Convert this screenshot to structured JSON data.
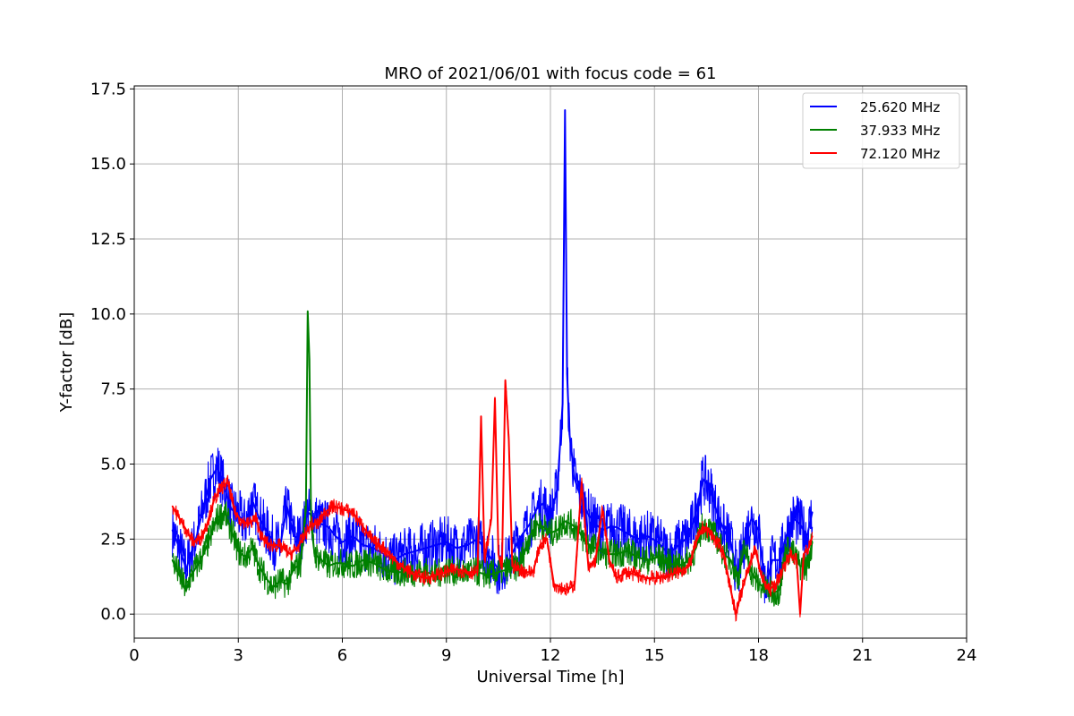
{
  "chart_data": {
    "type": "line",
    "title": "MRO of 2021/06/01 with focus code = 61",
    "xlabel": "Universal Time [h]",
    "ylabel": "Y-factor [dB]",
    "xlim": [
      0,
      24
    ],
    "ylim": [
      -0.8,
      17.6
    ],
    "xticks": [
      0,
      3,
      6,
      9,
      12,
      15,
      18,
      21,
      24
    ],
    "xtick_labels": [
      "0",
      "3",
      "6",
      "9",
      "12",
      "15",
      "18",
      "21",
      "24"
    ],
    "yticks": [
      0.0,
      2.5,
      5.0,
      7.5,
      10.0,
      12.5,
      15.0,
      17.5
    ],
    "ytick_labels": [
      "0.0",
      "2.5",
      "5.0",
      "7.5",
      "10.0",
      "12.5",
      "15.0",
      "17.5"
    ],
    "grid": true,
    "legend_position": "top-right",
    "series": [
      {
        "name": "25.620 MHz",
        "color": "#0000ff",
        "x": [
          1.1,
          1.3,
          1.5,
          1.6,
          1.8,
          2.0,
          2.2,
          2.4,
          2.6,
          2.8,
          3.0,
          3.2,
          3.4,
          3.6,
          3.8,
          4.0,
          4.2,
          4.4,
          4.6,
          4.8,
          5.0,
          5.2,
          5.4,
          5.6,
          5.8,
          6.0,
          6.3,
          6.6,
          6.9,
          7.2,
          7.5,
          7.8,
          8.1,
          8.4,
          8.7,
          9.0,
          9.3,
          9.6,
          9.9,
          10.2,
          10.5,
          10.8,
          11.1,
          11.4,
          11.6,
          11.8,
          12.0,
          12.2,
          12.35,
          12.42,
          12.45,
          12.48,
          12.55,
          12.7,
          12.9,
          13.1,
          13.3,
          13.5,
          13.7,
          13.9,
          14.2,
          14.5,
          14.8,
          15.1,
          15.4,
          15.7,
          16.0,
          16.2,
          16.4,
          16.6,
          16.8,
          17.0,
          17.2,
          17.4,
          17.6,
          17.8,
          18.0,
          18.2,
          18.4,
          18.6,
          18.8,
          19.0,
          19.2,
          19.4,
          19.55
        ],
        "y": [
          2.8,
          2.2,
          1.5,
          1.9,
          2.6,
          3.6,
          4.5,
          4.9,
          4.2,
          3.5,
          3.3,
          3.0,
          3.8,
          3.2,
          2.8,
          2.4,
          2.2,
          3.6,
          2.6,
          2.5,
          3.4,
          3.2,
          3.0,
          2.9,
          2.6,
          2.4,
          2.6,
          2.3,
          2.2,
          2.0,
          1.8,
          2.0,
          2.1,
          2.2,
          2.3,
          2.4,
          2.2,
          2.3,
          2.5,
          2.0,
          1.5,
          1.8,
          2.5,
          3.0,
          3.5,
          3.7,
          3.2,
          4.2,
          7.0,
          16.8,
          12.5,
          8.0,
          6.0,
          4.5,
          3.8,
          3.3,
          3.0,
          2.8,
          2.9,
          2.9,
          2.7,
          2.5,
          2.6,
          2.4,
          2.0,
          2.3,
          2.6,
          3.4,
          4.5,
          4.2,
          3.4,
          2.8,
          2.4,
          1.2,
          2.5,
          3.2,
          2.8,
          0.9,
          1.8,
          1.8,
          2.6,
          3.2,
          3.0,
          2.6,
          3.4
        ]
      },
      {
        "name": "37.933 MHz",
        "color": "#008000",
        "x": [
          1.1,
          1.3,
          1.5,
          1.6,
          1.8,
          2.0,
          2.2,
          2.4,
          2.6,
          2.8,
          3.0,
          3.2,
          3.4,
          3.6,
          3.8,
          4.0,
          4.2,
          4.4,
          4.6,
          4.8,
          4.95,
          5.0,
          5.05,
          5.1,
          5.2,
          5.4,
          5.6,
          5.8,
          6.0,
          6.3,
          6.6,
          6.9,
          7.2,
          7.5,
          7.8,
          8.1,
          8.4,
          8.7,
          9.0,
          9.3,
          9.6,
          9.9,
          10.2,
          10.5,
          10.8,
          11.1,
          11.4,
          11.6,
          11.8,
          12.0,
          12.2,
          12.4,
          12.6,
          12.8,
          13.0,
          13.3,
          13.6,
          13.9,
          14.2,
          14.5,
          14.8,
          15.1,
          15.4,
          15.7,
          16.0,
          16.2,
          16.4,
          16.6,
          16.8,
          17.0,
          17.2,
          17.4,
          17.6,
          17.8,
          18.0,
          18.2,
          18.4,
          18.6,
          18.8,
          19.0,
          19.2,
          19.4,
          19.55
        ],
        "y": [
          1.8,
          1.3,
          0.8,
          1.2,
          1.6,
          2.0,
          2.6,
          3.2,
          3.4,
          2.8,
          2.1,
          1.9,
          2.2,
          1.6,
          1.2,
          0.9,
          1.1,
          1.0,
          1.5,
          1.7,
          3.5,
          10.1,
          8.5,
          3.0,
          2.0,
          1.8,
          1.6,
          1.7,
          1.7,
          1.6,
          1.8,
          1.7,
          1.5,
          1.4,
          1.4,
          1.4,
          1.4,
          1.3,
          1.5,
          1.4,
          1.4,
          1.4,
          1.3,
          1.4,
          1.5,
          1.6,
          2.6,
          3.0,
          2.9,
          2.7,
          2.8,
          3.1,
          3.0,
          2.8,
          2.4,
          2.2,
          2.0,
          2.0,
          2.1,
          1.9,
          1.8,
          1.9,
          1.7,
          1.6,
          1.8,
          2.2,
          3.0,
          2.8,
          2.5,
          2.0,
          1.8,
          1.2,
          2.2,
          1.4,
          1.0,
          0.9,
          0.7,
          0.8,
          2.2,
          2.0,
          1.6,
          1.6,
          2.4
        ]
      },
      {
        "name": "72.120 MHz",
        "color": "#ff0000",
        "x": [
          1.1,
          1.3,
          1.5,
          1.7,
          1.9,
          2.1,
          2.3,
          2.5,
          2.7,
          2.9,
          3.1,
          3.3,
          3.5,
          3.7,
          3.9,
          4.1,
          4.3,
          4.5,
          4.7,
          4.9,
          5.1,
          5.3,
          5.5,
          5.75,
          6.0,
          6.3,
          6.6,
          6.9,
          7.2,
          7.5,
          7.8,
          8.1,
          8.4,
          8.7,
          9.0,
          9.3,
          9.6,
          9.9,
          10.0,
          10.1,
          10.3,
          10.4,
          10.5,
          10.6,
          10.7,
          10.8,
          10.9,
          11.1,
          11.3,
          11.5,
          11.7,
          11.9,
          12.1,
          12.3,
          12.5,
          12.7,
          12.9,
          13.1,
          13.3,
          13.5,
          13.7,
          13.9,
          14.2,
          14.5,
          14.8,
          15.1,
          15.4,
          15.7,
          16.0,
          16.2,
          16.4,
          16.6,
          16.8,
          17.0,
          17.2,
          17.35,
          17.5,
          17.7,
          17.9,
          18.1,
          18.3,
          18.5,
          18.7,
          18.9,
          19.1,
          19.2,
          19.3,
          19.45,
          19.55
        ],
        "y": [
          3.6,
          3.2,
          2.8,
          2.4,
          2.5,
          3.0,
          3.8,
          4.2,
          4.4,
          3.4,
          3.1,
          3.0,
          3.2,
          2.5,
          2.3,
          2.3,
          2.2,
          2.0,
          2.2,
          2.6,
          3.0,
          3.0,
          3.4,
          3.6,
          3.5,
          3.4,
          2.9,
          2.4,
          2.2,
          1.8,
          1.5,
          1.3,
          1.2,
          1.3,
          1.4,
          1.5,
          1.4,
          1.4,
          6.6,
          1.8,
          3.2,
          7.2,
          2.0,
          1.5,
          7.8,
          5.8,
          1.6,
          1.5,
          1.4,
          1.4,
          2.3,
          2.5,
          1.0,
          0.9,
          0.8,
          1.0,
          4.4,
          1.5,
          1.8,
          3.5,
          1.8,
          1.2,
          1.4,
          1.3,
          1.2,
          1.2,
          1.3,
          1.4,
          1.6,
          2.4,
          2.9,
          2.7,
          2.4,
          2.0,
          0.8,
          0.0,
          0.7,
          1.5,
          2.2,
          1.2,
          0.8,
          1.0,
          1.5,
          2.0,
          1.8,
          0.0,
          2.0,
          2.2,
          2.6
        ]
      }
    ]
  }
}
